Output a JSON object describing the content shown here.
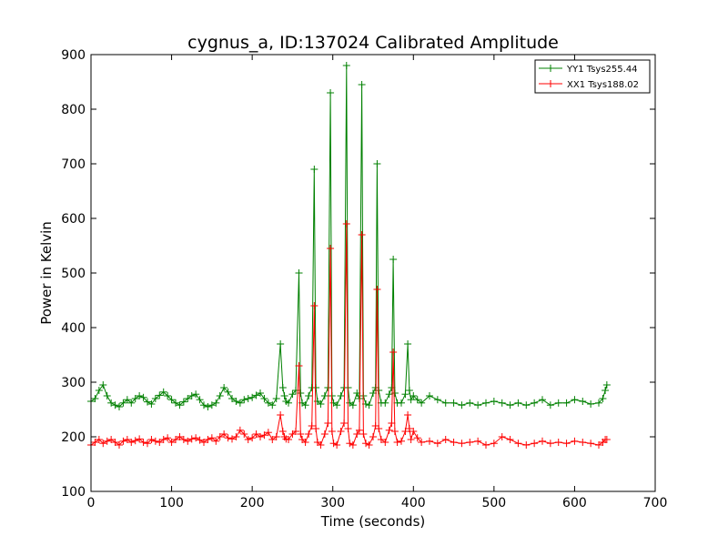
{
  "chart_data": {
    "type": "line",
    "title": "cygnus_a, ID:137024 Calibrated Amplitude",
    "xlabel": "Time (seconds)",
    "ylabel": "Power in Kelvin",
    "xlim": [
      0,
      700
    ],
    "ylim": [
      100,
      900
    ],
    "xticks": [
      0,
      100,
      200,
      300,
      400,
      500,
      600,
      700
    ],
    "yticks": [
      100,
      200,
      300,
      400,
      500,
      600,
      700,
      800,
      900
    ],
    "grid": false,
    "legend_position": "top-right",
    "marker": "plus",
    "series": [
      {
        "name": "YY1 Tsys255.44",
        "color": "#008000",
        "x": [
          0,
          5,
          10,
          15,
          20,
          25,
          30,
          35,
          40,
          45,
          50,
          55,
          60,
          65,
          70,
          75,
          80,
          85,
          90,
          95,
          100,
          105,
          110,
          115,
          120,
          125,
          130,
          135,
          140,
          145,
          150,
          155,
          160,
          165,
          170,
          175,
          180,
          185,
          190,
          195,
          200,
          205,
          210,
          215,
          220,
          225,
          230,
          235,
          238,
          240,
          242,
          245,
          250,
          254,
          258,
          260,
          262,
          266,
          270,
          274,
          277,
          279,
          281,
          285,
          290,
          294,
          297,
          299,
          301,
          305,
          310,
          314,
          317,
          319,
          321,
          325,
          330,
          333,
          336,
          338,
          341,
          345,
          350,
          353,
          355,
          357,
          360,
          365,
          370,
          373,
          375,
          377,
          380,
          385,
          390,
          393,
          395,
          397,
          400,
          405,
          410,
          420,
          430,
          440,
          450,
          460,
          470,
          480,
          490,
          500,
          510,
          520,
          530,
          540,
          550,
          560,
          570,
          580,
          590,
          600,
          610,
          620,
          630,
          635,
          638,
          640
        ],
        "values": [
          265,
          270,
          285,
          295,
          275,
          262,
          258,
          255,
          262,
          268,
          262,
          270,
          275,
          272,
          264,
          260,
          270,
          276,
          282,
          275,
          268,
          262,
          258,
          264,
          270,
          275,
          278,
          268,
          258,
          255,
          258,
          262,
          275,
          290,
          282,
          270,
          265,
          262,
          268,
          270,
          272,
          276,
          280,
          270,
          262,
          258,
          270,
          370,
          290,
          275,
          265,
          262,
          278,
          285,
          500,
          280,
          262,
          258,
          275,
          290,
          690,
          290,
          265,
          260,
          275,
          290,
          830,
          275,
          262,
          258,
          275,
          290,
          880,
          290,
          262,
          258,
          280,
          270,
          845,
          275,
          260,
          258,
          280,
          290,
          700,
          285,
          262,
          262,
          278,
          290,
          525,
          280,
          262,
          262,
          278,
          370,
          285,
          268,
          275,
          268,
          262,
          275,
          268,
          262,
          262,
          258,
          262,
          258,
          262,
          265,
          262,
          258,
          262,
          258,
          262,
          268,
          258,
          262,
          262,
          268,
          265,
          260,
          262,
          270,
          285,
          295
        ]
      },
      {
        "name": "XX1 Tsys188.02",
        "color": "#ff0000",
        "x": [
          0,
          5,
          10,
          15,
          20,
          25,
          30,
          35,
          40,
          45,
          50,
          55,
          60,
          65,
          70,
          75,
          80,
          85,
          90,
          95,
          100,
          105,
          110,
          115,
          120,
          125,
          130,
          135,
          140,
          145,
          150,
          155,
          160,
          165,
          170,
          175,
          180,
          185,
          190,
          195,
          200,
          205,
          210,
          215,
          220,
          225,
          230,
          235,
          238,
          240,
          242,
          245,
          250,
          254,
          258,
          260,
          262,
          266,
          270,
          274,
          277,
          279,
          281,
          285,
          290,
          294,
          297,
          299,
          301,
          305,
          310,
          314,
          317,
          319,
          321,
          325,
          330,
          333,
          336,
          338,
          341,
          345,
          350,
          353,
          355,
          357,
          360,
          365,
          370,
          373,
          375,
          377,
          380,
          385,
          390,
          393,
          395,
          397,
          400,
          405,
          410,
          420,
          430,
          440,
          450,
          460,
          470,
          480,
          490,
          500,
          510,
          520,
          530,
          540,
          550,
          560,
          570,
          580,
          590,
          600,
          610,
          620,
          630,
          635,
          638,
          640
        ],
        "values": [
          185,
          190,
          195,
          188,
          192,
          195,
          190,
          185,
          192,
          195,
          190,
          193,
          196,
          190,
          188,
          195,
          192,
          190,
          195,
          198,
          190,
          195,
          200,
          195,
          192,
          196,
          198,
          194,
          190,
          195,
          198,
          192,
          200,
          205,
          198,
          196,
          200,
          212,
          205,
          195,
          198,
          205,
          200,
          203,
          208,
          195,
          200,
          240,
          210,
          200,
          196,
          195,
          205,
          210,
          330,
          205,
          195,
          190,
          205,
          220,
          440,
          215,
          190,
          185,
          205,
          225,
          545,
          210,
          188,
          185,
          210,
          225,
          590,
          215,
          188,
          185,
          205,
          212,
          570,
          205,
          188,
          185,
          200,
          220,
          470,
          215,
          195,
          190,
          212,
          225,
          355,
          210,
          190,
          192,
          210,
          240,
          215,
          195,
          210,
          198,
          190,
          192,
          188,
          195,
          190,
          188,
          190,
          192,
          185,
          188,
          200,
          195,
          188,
          185,
          188,
          192,
          188,
          190,
          188,
          192,
          190,
          188,
          185,
          190,
          195,
          195
        ]
      }
    ]
  }
}
